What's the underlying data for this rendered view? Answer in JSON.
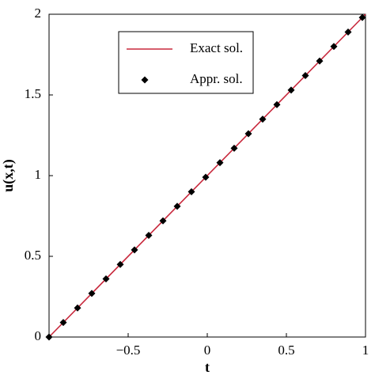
{
  "chart_data": {
    "type": "line",
    "xlabel": "t",
    "ylabel": "u(x,t)",
    "series": [
      {
        "name": "Exact sol.",
        "style": "line",
        "color": "#c8283c",
        "x": [
          -1,
          1
        ],
        "values": [
          0,
          2
        ]
      },
      {
        "name": "Appr. sol.",
        "style": "marker",
        "color": "#000000",
        "x": [
          -1,
          -0.91,
          -0.82,
          -0.73,
          -0.64,
          -0.55,
          -0.46,
          -0.37,
          -0.28,
          -0.19,
          -0.1,
          -0.01,
          0.08,
          0.17,
          0.26,
          0.35,
          0.44,
          0.53,
          0.62,
          0.71,
          0.8,
          0.89,
          0.98
        ],
        "values": [
          0,
          0.09,
          0.18,
          0.27,
          0.36,
          0.45,
          0.54,
          0.63,
          0.72,
          0.81,
          0.9,
          0.99,
          1.08,
          1.17,
          1.26,
          1.35,
          1.44,
          1.53,
          1.62,
          1.71,
          1.8,
          1.89,
          1.98
        ]
      }
    ],
    "xlim": [
      -1,
      1
    ],
    "xticks": [
      {
        "value": -0.5,
        "label": "−0.5"
      },
      0,
      0.5,
      1
    ],
    "ylim": [
      0,
      2
    ],
    "yticks": [
      0,
      0.5,
      1,
      1.5,
      2
    ],
    "legend": "upper-left"
  }
}
